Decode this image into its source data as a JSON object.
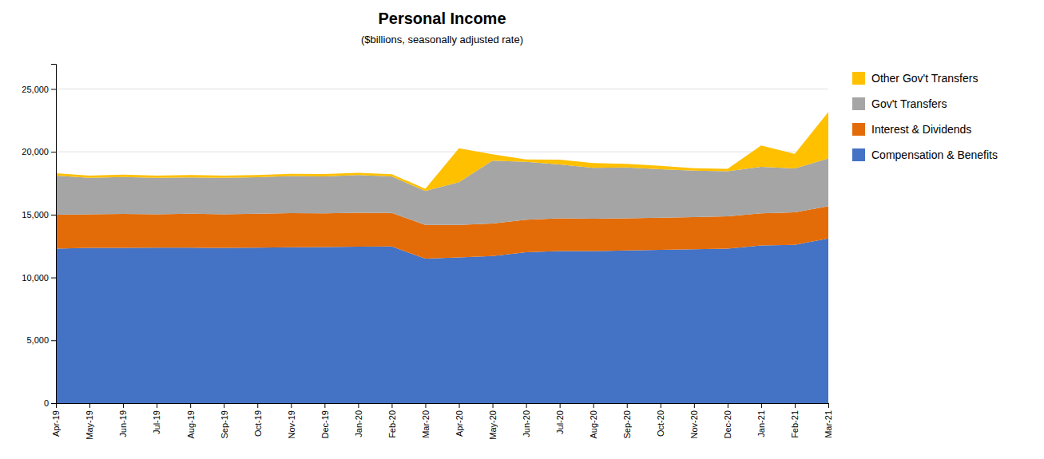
{
  "chart_data": {
    "type": "area",
    "stacked": true,
    "title": "Personal Income",
    "subtitle": "($billions, seasonally adjusted rate)",
    "categories": [
      "Apr-19",
      "May-19",
      "Jun-19",
      "Jul-19",
      "Aug-19",
      "Sep-19",
      "Oct-19",
      "Nov-19",
      "Dec-19",
      "Jan-20",
      "Feb-20",
      "Mar-20",
      "Apr-20",
      "May-20",
      "Jun-20",
      "Jul-20",
      "Aug-20",
      "Sep-20",
      "Oct-20",
      "Nov-20",
      "Dec-20",
      "Jan-21",
      "Feb-21",
      "Mar-21"
    ],
    "series": [
      {
        "name": "Compensation & Benefits",
        "color": "#4472C4",
        "values": [
          12300,
          12350,
          12350,
          12380,
          12370,
          12350,
          12380,
          12400,
          12420,
          12450,
          12460,
          11500,
          11600,
          11700,
          12000,
          12100,
          12100,
          12150,
          12200,
          12250,
          12300,
          12550,
          12600,
          13100
        ]
      },
      {
        "name": "Interest & Dividends",
        "color": "#E36C09",
        "values": [
          2700,
          2680,
          2700,
          2650,
          2700,
          2680,
          2700,
          2720,
          2680,
          2700,
          2680,
          2680,
          2580,
          2600,
          2600,
          2600,
          2580,
          2560,
          2560,
          2560,
          2560,
          2560,
          2580,
          2570
        ]
      },
      {
        "name": "Gov't Transfers",
        "color": "#A5A5A5",
        "values": [
          3100,
          2900,
          2950,
          2900,
          2900,
          2900,
          2900,
          2950,
          2950,
          3000,
          2900,
          2700,
          3400,
          5000,
          4600,
          4300,
          4050,
          4050,
          3850,
          3700,
          3600,
          3700,
          3500,
          3800
        ]
      },
      {
        "name": "Other Gov't Transfers",
        "color": "#FFC000",
        "values": [
          200,
          180,
          180,
          180,
          180,
          180,
          180,
          180,
          180,
          180,
          180,
          180,
          2700,
          500,
          200,
          380,
          380,
          280,
          280,
          180,
          180,
          1700,
          1150,
          3700
        ]
      }
    ],
    "ylim": [
      0,
      27000
    ],
    "yticks": [
      0,
      {
        "value": 5000,
        "label": "5,000"
      },
      {
        "value": 10000,
        "label": "10,000"
      },
      {
        "value": 15000,
        "label": "15,000"
      },
      {
        "value": 20000,
        "label": "20,000"
      },
      {
        "value": 25000,
        "label": "25,000"
      }
    ],
    "grid": true,
    "legend": "right"
  }
}
